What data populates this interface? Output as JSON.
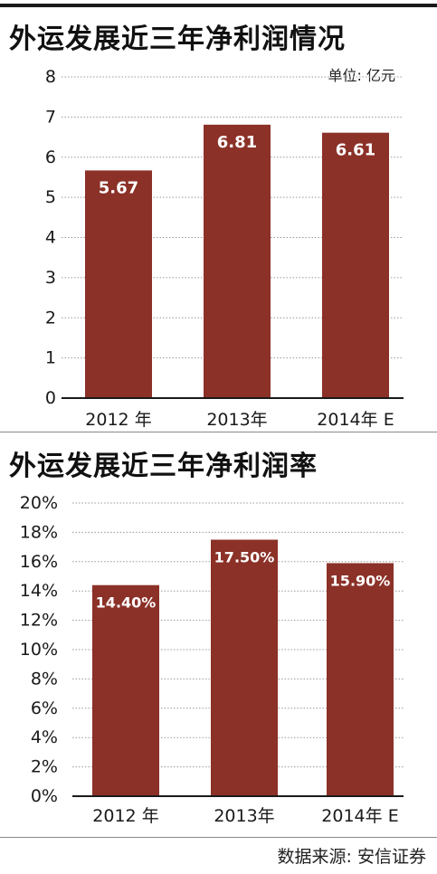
{
  "colors": {
    "bar": "#8b3128",
    "bar_label": "#ffffff",
    "grid": "#9a9a9a",
    "axis": "#1a1a1a"
  },
  "chart_data": [
    {
      "type": "bar",
      "title": "外运发展近三年净利润情况",
      "unit_label": "单位: 亿元",
      "categories": [
        "2012 年",
        "2013年",
        "2014年 E"
      ],
      "values": [
        5.67,
        6.81,
        6.61
      ],
      "value_labels": [
        "5.67",
        "6.81",
        "6.61"
      ],
      "yticks": [
        "0",
        "1",
        "2",
        "3",
        "4",
        "5",
        "6",
        "7",
        "8"
      ],
      "ylim": [
        0,
        8
      ],
      "grid": true
    },
    {
      "type": "bar",
      "title": "外运发展近三年净利润率",
      "categories": [
        "2012 年",
        "2013年",
        "2014年 E"
      ],
      "values": [
        14.4,
        17.5,
        15.9
      ],
      "value_labels": [
        "14.40%",
        "17.50%",
        "15.90%"
      ],
      "yticks": [
        "0%",
        "2%",
        "4%",
        "6%",
        "8%",
        "10%",
        "12%",
        "14%",
        "16%",
        "18%",
        "20%"
      ],
      "ylim": [
        0,
        20
      ],
      "grid": true
    }
  ],
  "source": "数据来源: 安信证券"
}
